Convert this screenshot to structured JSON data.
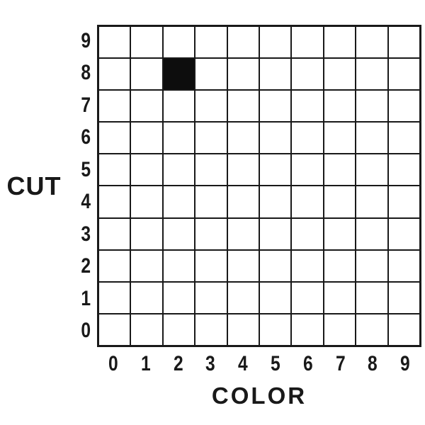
{
  "chart_data": {
    "type": "heatmap",
    "title": "",
    "xlabel": "COLOR",
    "ylabel": "CUT",
    "x_ticks": [
      "0",
      "1",
      "2",
      "3",
      "4",
      "5",
      "6",
      "7",
      "8",
      "9"
    ],
    "y_ticks": [
      "9",
      "8",
      "7",
      "6",
      "5",
      "4",
      "3",
      "2",
      "1",
      "0"
    ],
    "grid": {
      "columns": 10,
      "rows": 10,
      "gridlines": true
    },
    "filled_cells": [
      {
        "color": 2,
        "cut": 8
      }
    ],
    "fill_color": "#0d0d0d",
    "line_color": "#191919",
    "background_color": "#ffffff",
    "x_range": [
      0,
      9
    ],
    "y_range": [
      0,
      9
    ]
  }
}
